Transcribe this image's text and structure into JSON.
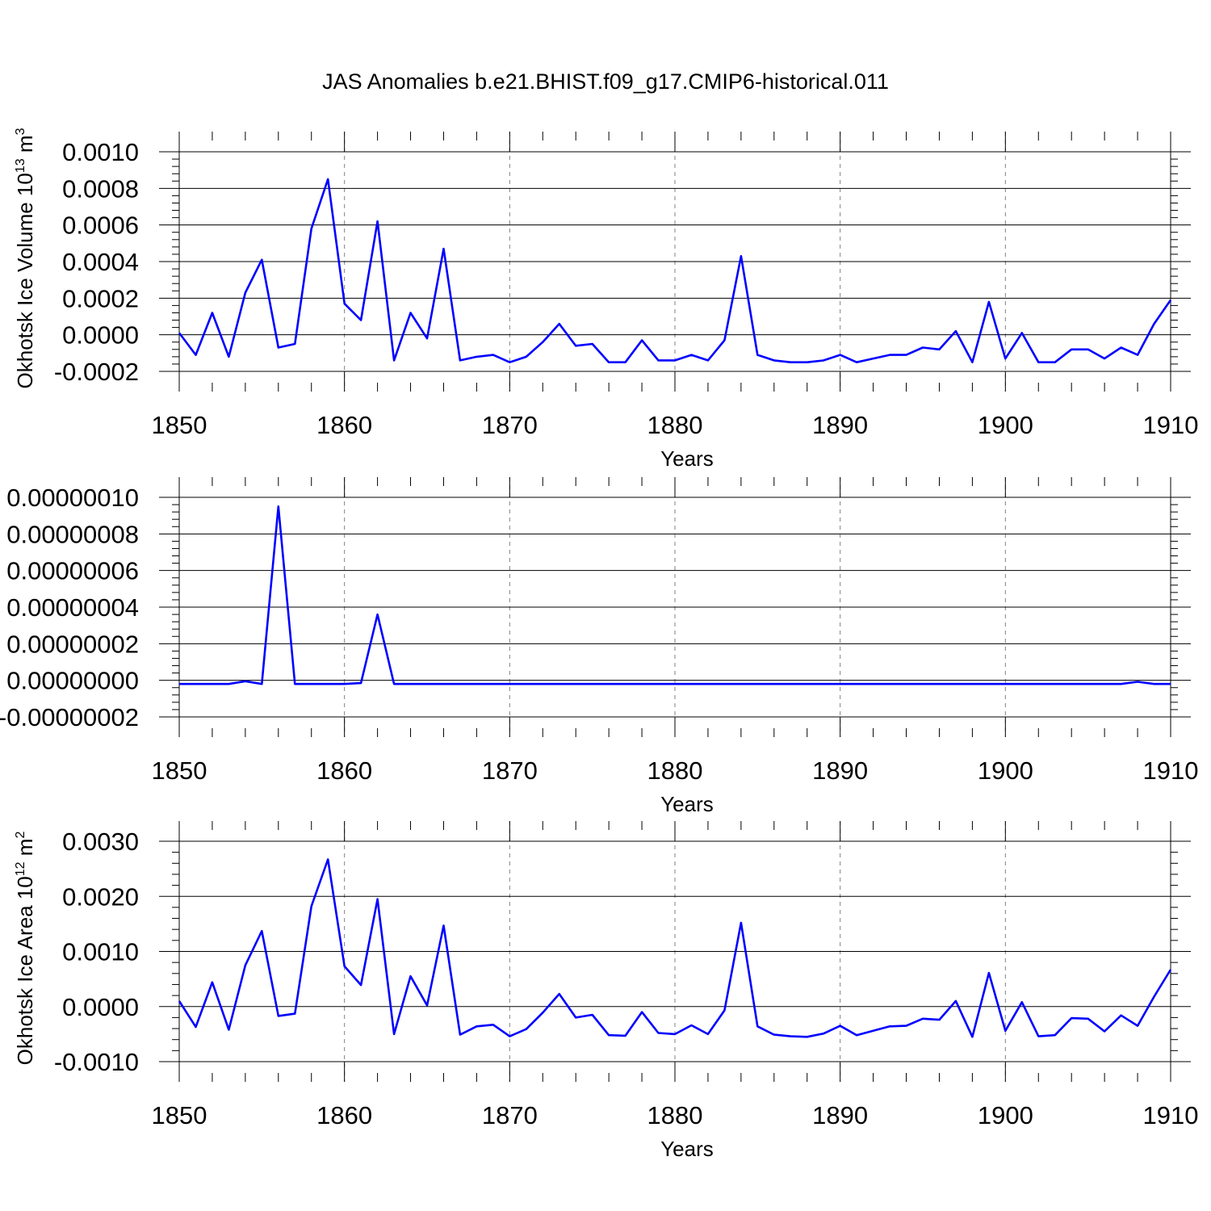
{
  "title": "JAS Anomalies b.e21.BHIST.f09_g17.CMIP6-historical.011",
  "colors": {
    "line": "#0000ff",
    "axis": "#000000",
    "grid": "#808080"
  },
  "chart_data": [
    {
      "type": "line",
      "title": "",
      "xlabel": "Years",
      "ylabel": "Okhotsk Ice Volume",
      "ylabel_unit": {
        "base": "10",
        "exp": "13",
        "unit": "m",
        "unit_exp": "3"
      },
      "xlim": [
        1850,
        1910
      ],
      "ylim": [
        -0.0002,
        0.001
      ],
      "grid": "vertical dashed",
      "x_ticks": [
        1850,
        1860,
        1870,
        1880,
        1890,
        1900,
        1910
      ],
      "x_tick_labels": [
        "1850",
        "1860",
        "1870",
        "1880",
        "1890",
        "1900",
        "1910"
      ],
      "y_ticks": [
        -0.0002,
        0,
        0.0002,
        0.0004,
        0.0006,
        0.0008,
        0.001
      ],
      "y_tick_labels": [
        "-0.0002",
        "0.0000",
        "0.0002",
        "0.0004",
        "0.0006",
        "0.0008",
        "0.0010"
      ],
      "x_start": 1850,
      "values": [
        1e-05,
        -0.00011,
        0.00012,
        -0.00012,
        0.00023,
        0.00041,
        -7e-05,
        -5e-05,
        0.00058,
        0.00085,
        0.00017,
        8e-05,
        0.00062,
        -0.00014,
        0.00012,
        -2e-05,
        0.00047,
        -0.00014,
        -0.00012,
        -0.00011,
        -0.00015,
        -0.00012,
        -4e-05,
        6e-05,
        -6e-05,
        -5e-05,
        -0.00015,
        -0.00015,
        -3e-05,
        -0.00014,
        -0.00014,
        -0.00011,
        -0.00014,
        -3e-05,
        0.00043,
        -0.00011,
        -0.00014,
        -0.00015,
        -0.00015,
        -0.00014,
        -0.00011,
        -0.00015,
        -0.00013,
        -0.00011,
        -0.00011,
        -7e-05,
        -8e-05,
        2e-05,
        -0.00015,
        0.00018,
        -0.00013,
        1e-05,
        -0.00015,
        -0.00015,
        -8e-05,
        -8e-05,
        -0.00013,
        -7e-05,
        -0.00011,
        6e-05,
        0.00019
      ]
    },
    {
      "type": "line",
      "title": "",
      "xlabel": "Years",
      "ylabel": "",
      "xlim": [
        1850,
        1910
      ],
      "ylim": [
        -2e-08,
        1e-07
      ],
      "grid": "vertical dashed",
      "x_ticks": [
        1850,
        1860,
        1870,
        1880,
        1890,
        1900,
        1910
      ],
      "x_tick_labels": [
        "1850",
        "1860",
        "1870",
        "1880",
        "1890",
        "1900",
        "1910"
      ],
      "y_ticks": [
        -2e-08,
        0,
        2e-08,
        4e-08,
        6e-08,
        8e-08,
        1e-07
      ],
      "y_tick_labels": [
        "-0.00000002",
        "0.00000000",
        "0.00000002",
        "0.00000004",
        "0.00000006",
        "0.00000008",
        "0.00000010"
      ],
      "x_start": 1850,
      "values": [
        -2e-09,
        -2e-09,
        -2e-09,
        -2e-09,
        -5e-10,
        -2e-09,
        9.5e-08,
        -2e-09,
        -2e-09,
        -2e-09,
        -2e-09,
        -1.5e-09,
        3.6e-08,
        -2e-09,
        -2e-09,
        -2e-09,
        -2e-09,
        -2e-09,
        -2e-09,
        -2e-09,
        -2e-09,
        -2e-09,
        -2e-09,
        -2e-09,
        -2e-09,
        -2e-09,
        -2e-09,
        -2e-09,
        -2e-09,
        -2e-09,
        -2e-09,
        -2e-09,
        -2e-09,
        -2e-09,
        -2e-09,
        -2e-09,
        -2e-09,
        -2e-09,
        -2e-09,
        -2e-09,
        -2e-09,
        -2e-09,
        -2e-09,
        -2e-09,
        -2e-09,
        -2e-09,
        -2e-09,
        -2e-09,
        -2e-09,
        -2e-09,
        -2e-09,
        -2e-09,
        -2e-09,
        -2e-09,
        -2e-09,
        -2e-09,
        -2e-09,
        -2e-09,
        -8e-10,
        -2e-09,
        -2e-09
      ]
    },
    {
      "type": "line",
      "title": "",
      "xlabel": "Years",
      "ylabel": "Okhotsk Ice Area",
      "ylabel_unit": {
        "base": "10",
        "exp": "12",
        "unit": "m",
        "unit_exp": "2"
      },
      "xlim": [
        1850,
        1910
      ],
      "ylim": [
        -0.001,
        0.003
      ],
      "grid": "vertical dashed",
      "x_ticks": [
        1850,
        1860,
        1870,
        1880,
        1890,
        1900,
        1910
      ],
      "x_tick_labels": [
        "1850",
        "1860",
        "1870",
        "1880",
        "1890",
        "1900",
        "1910"
      ],
      "y_ticks": [
        -0.001,
        0,
        0.001,
        0.002,
        0.003
      ],
      "y_tick_labels": [
        "-0.0010",
        "0.0000",
        "0.0010",
        "0.0020",
        "0.0030"
      ],
      "x_start": 1850,
      "values": [
        0.0001,
        -0.00037,
        0.00044,
        -0.00042,
        0.00075,
        0.00137,
        -0.00017,
        -0.00013,
        0.00182,
        0.00267,
        0.00073,
        0.00039,
        0.00195,
        -0.0005,
        0.00055,
        2e-05,
        0.00147,
        -0.00051,
        -0.00036,
        -0.00033,
        -0.00054,
        -0.00041,
        -0.00011,
        0.00023,
        -0.0002,
        -0.00015,
        -0.00052,
        -0.00053,
        -0.0001,
        -0.00048,
        -0.0005,
        -0.00034,
        -0.0005,
        -7e-05,
        0.00152,
        -0.00036,
        -0.00051,
        -0.00054,
        -0.00055,
        -0.00049,
        -0.00035,
        -0.00052,
        -0.00044,
        -0.00036,
        -0.00035,
        -0.00022,
        -0.00024,
        0.0001,
        -0.00055,
        0.00061,
        -0.00044,
        8e-05,
        -0.00054,
        -0.00052,
        -0.00021,
        -0.00022,
        -0.00045,
        -0.00016,
        -0.00035,
        0.00018,
        0.00067
      ]
    }
  ]
}
